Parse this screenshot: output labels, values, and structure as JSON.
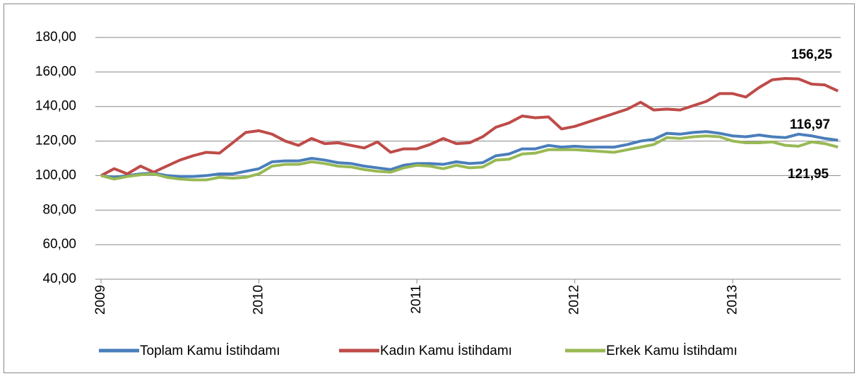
{
  "chart_data": {
    "type": "line",
    "categories": [
      "2009",
      null,
      null,
      null,
      null,
      null,
      null,
      null,
      null,
      null,
      null,
      null,
      "2010",
      null,
      null,
      null,
      null,
      null,
      null,
      null,
      null,
      null,
      null,
      null,
      "2011",
      null,
      null,
      null,
      null,
      null,
      null,
      null,
      null,
      null,
      null,
      null,
      "2012",
      null,
      null,
      null,
      null,
      null,
      null,
      null,
      null,
      null,
      null,
      null,
      "2013",
      null,
      null,
      null,
      null,
      null,
      null,
      null,
      null
    ],
    "series": [
      {
        "name": "Toplam Kamu İstihdamı",
        "color": "#4a7ebb",
        "values": [
          100,
          99,
          100,
          101,
          101.5,
          100,
          99.5,
          99.5,
          100,
          101,
          101,
          102.5,
          104,
          108,
          108.5,
          108.5,
          110,
          109,
          107.5,
          107,
          105.5,
          104.5,
          103.5,
          106,
          107,
          107,
          106.5,
          108,
          107,
          107.5,
          111.5,
          112.5,
          115.5,
          115.5,
          117.5,
          116.5,
          117,
          116.5,
          116.5,
          116.5,
          118,
          120,
          121,
          124.5,
          124,
          125,
          125.5,
          124.5,
          123,
          122.5,
          123.5,
          122.5,
          122,
          124,
          123,
          121.5,
          120.5
        ]
      },
      {
        "name": "Kadın Kamu İstihdamı",
        "color": "#be4b48",
        "values": [
          100,
          104,
          101,
          105.5,
          102,
          105.5,
          109,
          111.5,
          113.5,
          113,
          119,
          125,
          126,
          124,
          120,
          117.5,
          121.5,
          118.5,
          119,
          117.5,
          116,
          119.5,
          113.5,
          115.5,
          115.5,
          118,
          121.5,
          118.5,
          119,
          122.5,
          128,
          130.5,
          134.5,
          133.5,
          134,
          127,
          128.5,
          131,
          133.5,
          136,
          138.5,
          142.5,
          138,
          138.5,
          138,
          140.5,
          143,
          147.5,
          147.5,
          145.5,
          151,
          155.5,
          156.25,
          156,
          153,
          152.5,
          149
        ]
      },
      {
        "name": "Erkek Kamu İstihdamı",
        "color": "#98b954",
        "values": [
          100,
          98,
          99.5,
          100.5,
          101,
          99,
          98,
          97.5,
          97.5,
          99,
          98.5,
          99,
          101,
          105.5,
          106.5,
          106.5,
          108,
          107,
          105.5,
          105,
          103.5,
          102.5,
          102,
          104.5,
          106,
          105.5,
          104,
          106,
          104.5,
          105,
          109,
          109.5,
          112.5,
          113,
          115,
          115,
          115,
          114.5,
          114,
          113.5,
          115,
          116.5,
          118,
          122,
          121.5,
          122.5,
          123,
          122.5,
          120,
          119,
          119,
          119.5,
          117.5,
          117,
          119.5,
          118.5,
          116.5
        ]
      }
    ],
    "ylim": [
      40,
      180
    ],
    "yticks": [
      {
        "value": 40,
        "label": "40,00"
      },
      {
        "value": 60,
        "label": "60,00"
      },
      {
        "value": 80,
        "label": "80,00"
      },
      {
        "value": 100,
        "label": "100,00"
      },
      {
        "value": 120,
        "label": "120,00"
      },
      {
        "value": 140,
        "label": "140,00"
      },
      {
        "value": 160,
        "label": "160,00"
      },
      {
        "value": 180,
        "label": "180,00"
      }
    ],
    "grid": true,
    "annotations": [
      "156,25",
      "116,97",
      "121,95"
    ]
  }
}
